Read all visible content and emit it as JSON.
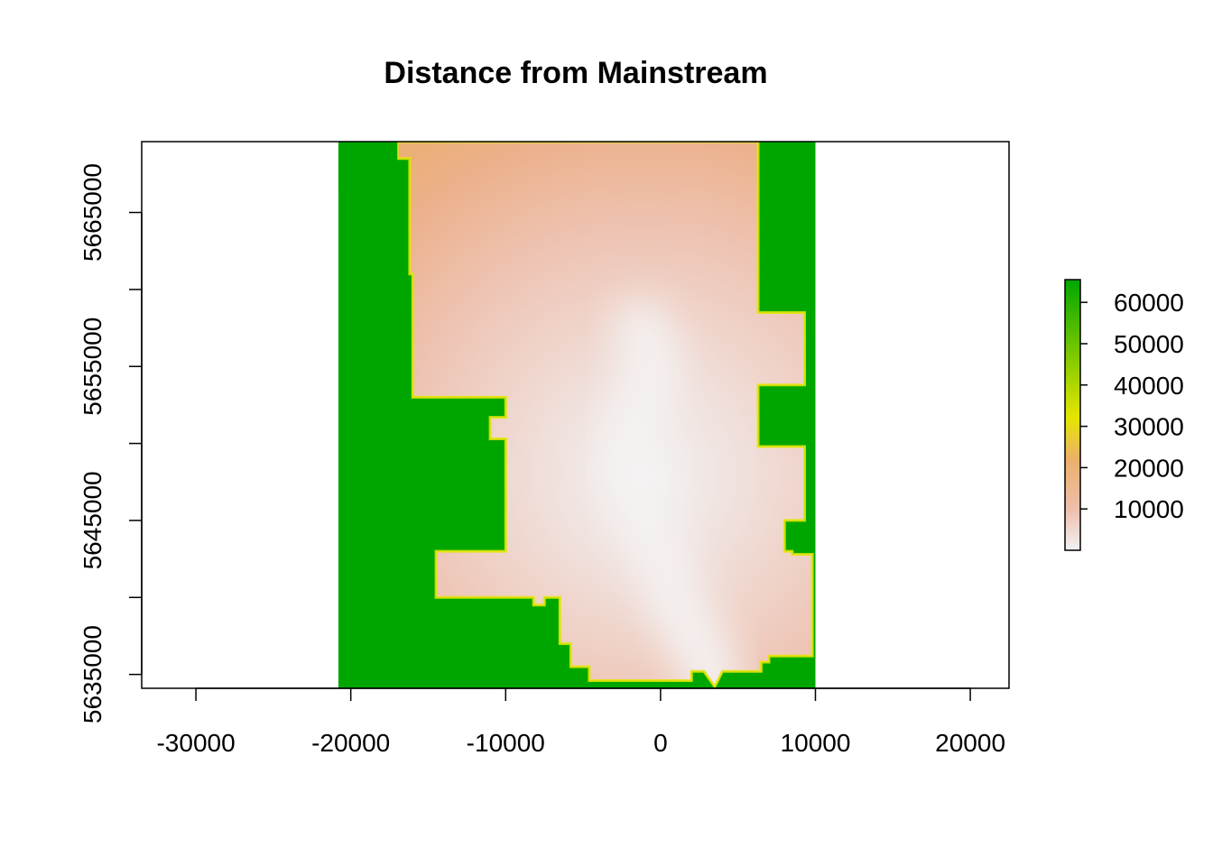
{
  "chart_data": {
    "type": "heatmap",
    "title": "Distance from Mainstream",
    "xlabel": "",
    "ylabel": "",
    "xlim": [
      -33500,
      22500
    ],
    "ylim": [
      5634100,
      5669600
    ],
    "x_ticks": [
      -30000,
      -20000,
      -10000,
      0,
      10000,
      20000
    ],
    "x_tick_labels": [
      "-30000",
      "-20000",
      "-10000",
      "0",
      "10000",
      "20000"
    ],
    "y_ticks": [
      5635000,
      5640000,
      5645000,
      5650000,
      5655000,
      5660000,
      5665000
    ],
    "y_tick_labels": [
      "5635000",
      "",
      "5645000",
      "",
      "5655000",
      "",
      "5665000"
    ],
    "grid": false,
    "raster_extent": {
      "x": [
        -20800,
        10000
      ],
      "y": [
        5634100,
        5669600
      ]
    },
    "stream_path": [
      [
        3500,
        5634200
      ],
      [
        2700,
        5636500
      ],
      [
        1300,
        5639000
      ],
      [
        500,
        5641000
      ],
      [
        -300,
        5643500
      ],
      [
        -1200,
        5646000
      ],
      [
        -2000,
        5648500
      ],
      [
        -1800,
        5651000
      ],
      [
        -800,
        5653500
      ],
      [
        -500,
        5655000
      ],
      [
        -1200,
        5657500
      ]
    ],
    "outside_value": 65000,
    "legend": {
      "placement": "right",
      "range": [
        0,
        65500
      ],
      "ticks": [
        10000,
        20000,
        30000,
        40000,
        50000,
        60000
      ],
      "tick_labels": [
        "10000",
        "20000",
        "30000",
        "40000",
        "50000",
        "60000"
      ],
      "colors": [
        "#F2F2F2",
        "#EEBEAB",
        "#EBB06A",
        "#E6E600",
        "#00A600"
      ],
      "color_stops": [
        0,
        10000,
        22000,
        32000,
        65500
      ]
    },
    "colors": {
      "frame": "#000000",
      "out_of_basin": "#00A600",
      "edge": "#E6E600"
    },
    "basin_polygon": [
      [
        -20800,
        5669600
      ],
      [
        -17000,
        5669600
      ],
      [
        -17000,
        5668500
      ],
      [
        -16200,
        5668500
      ],
      [
        -16200,
        5661000
      ],
      [
        -16000,
        5661000
      ],
      [
        -16000,
        5653000
      ],
      [
        -10000,
        5653000
      ],
      [
        -10000,
        5651700
      ],
      [
        -11000,
        5651700
      ],
      [
        -11000,
        5650300
      ],
      [
        -10000,
        5650300
      ],
      [
        -10000,
        5643000
      ],
      [
        -14500,
        5643000
      ],
      [
        -14500,
        5640000
      ],
      [
        -8200,
        5640000
      ],
      [
        -8200,
        5639500
      ],
      [
        -7500,
        5639500
      ],
      [
        -7500,
        5640000
      ],
      [
        -6500,
        5640000
      ],
      [
        -6500,
        5637000
      ],
      [
        -5800,
        5637000
      ],
      [
        -5800,
        5635500
      ],
      [
        -4600,
        5635500
      ],
      [
        -4600,
        5634600
      ],
      [
        2000,
        5634600
      ],
      [
        2000,
        5635200
      ],
      [
        2800,
        5635200
      ],
      [
        3500,
        5634200
      ],
      [
        4000,
        5635200
      ],
      [
        6500,
        5635200
      ],
      [
        6500,
        5635800
      ],
      [
        7000,
        5635800
      ],
      [
        7000,
        5636200
      ],
      [
        9800,
        5636200
      ],
      [
        9800,
        5642800
      ],
      [
        8500,
        5642800
      ],
      [
        8500,
        5643000
      ],
      [
        8000,
        5643000
      ],
      [
        8000,
        5645000
      ],
      [
        9300,
        5645000
      ],
      [
        9300,
        5649800
      ],
      [
        6300,
        5649800
      ],
      [
        6300,
        5653800
      ],
      [
        9300,
        5653800
      ],
      [
        9300,
        5658500
      ],
      [
        6300,
        5658500
      ],
      [
        6300,
        5669600
      ]
    ],
    "green_pockets": [
      [
        [
          -20800,
          5669600
        ],
        [
          -17000,
          5669600
        ],
        [
          -17000,
          5665500
        ],
        [
          -18500,
          5665500
        ],
        [
          -18500,
          5664000
        ],
        [
          -19600,
          5664000
        ],
        [
          -19600,
          5666500
        ],
        [
          -20800,
          5666500
        ]
      ]
    ]
  }
}
